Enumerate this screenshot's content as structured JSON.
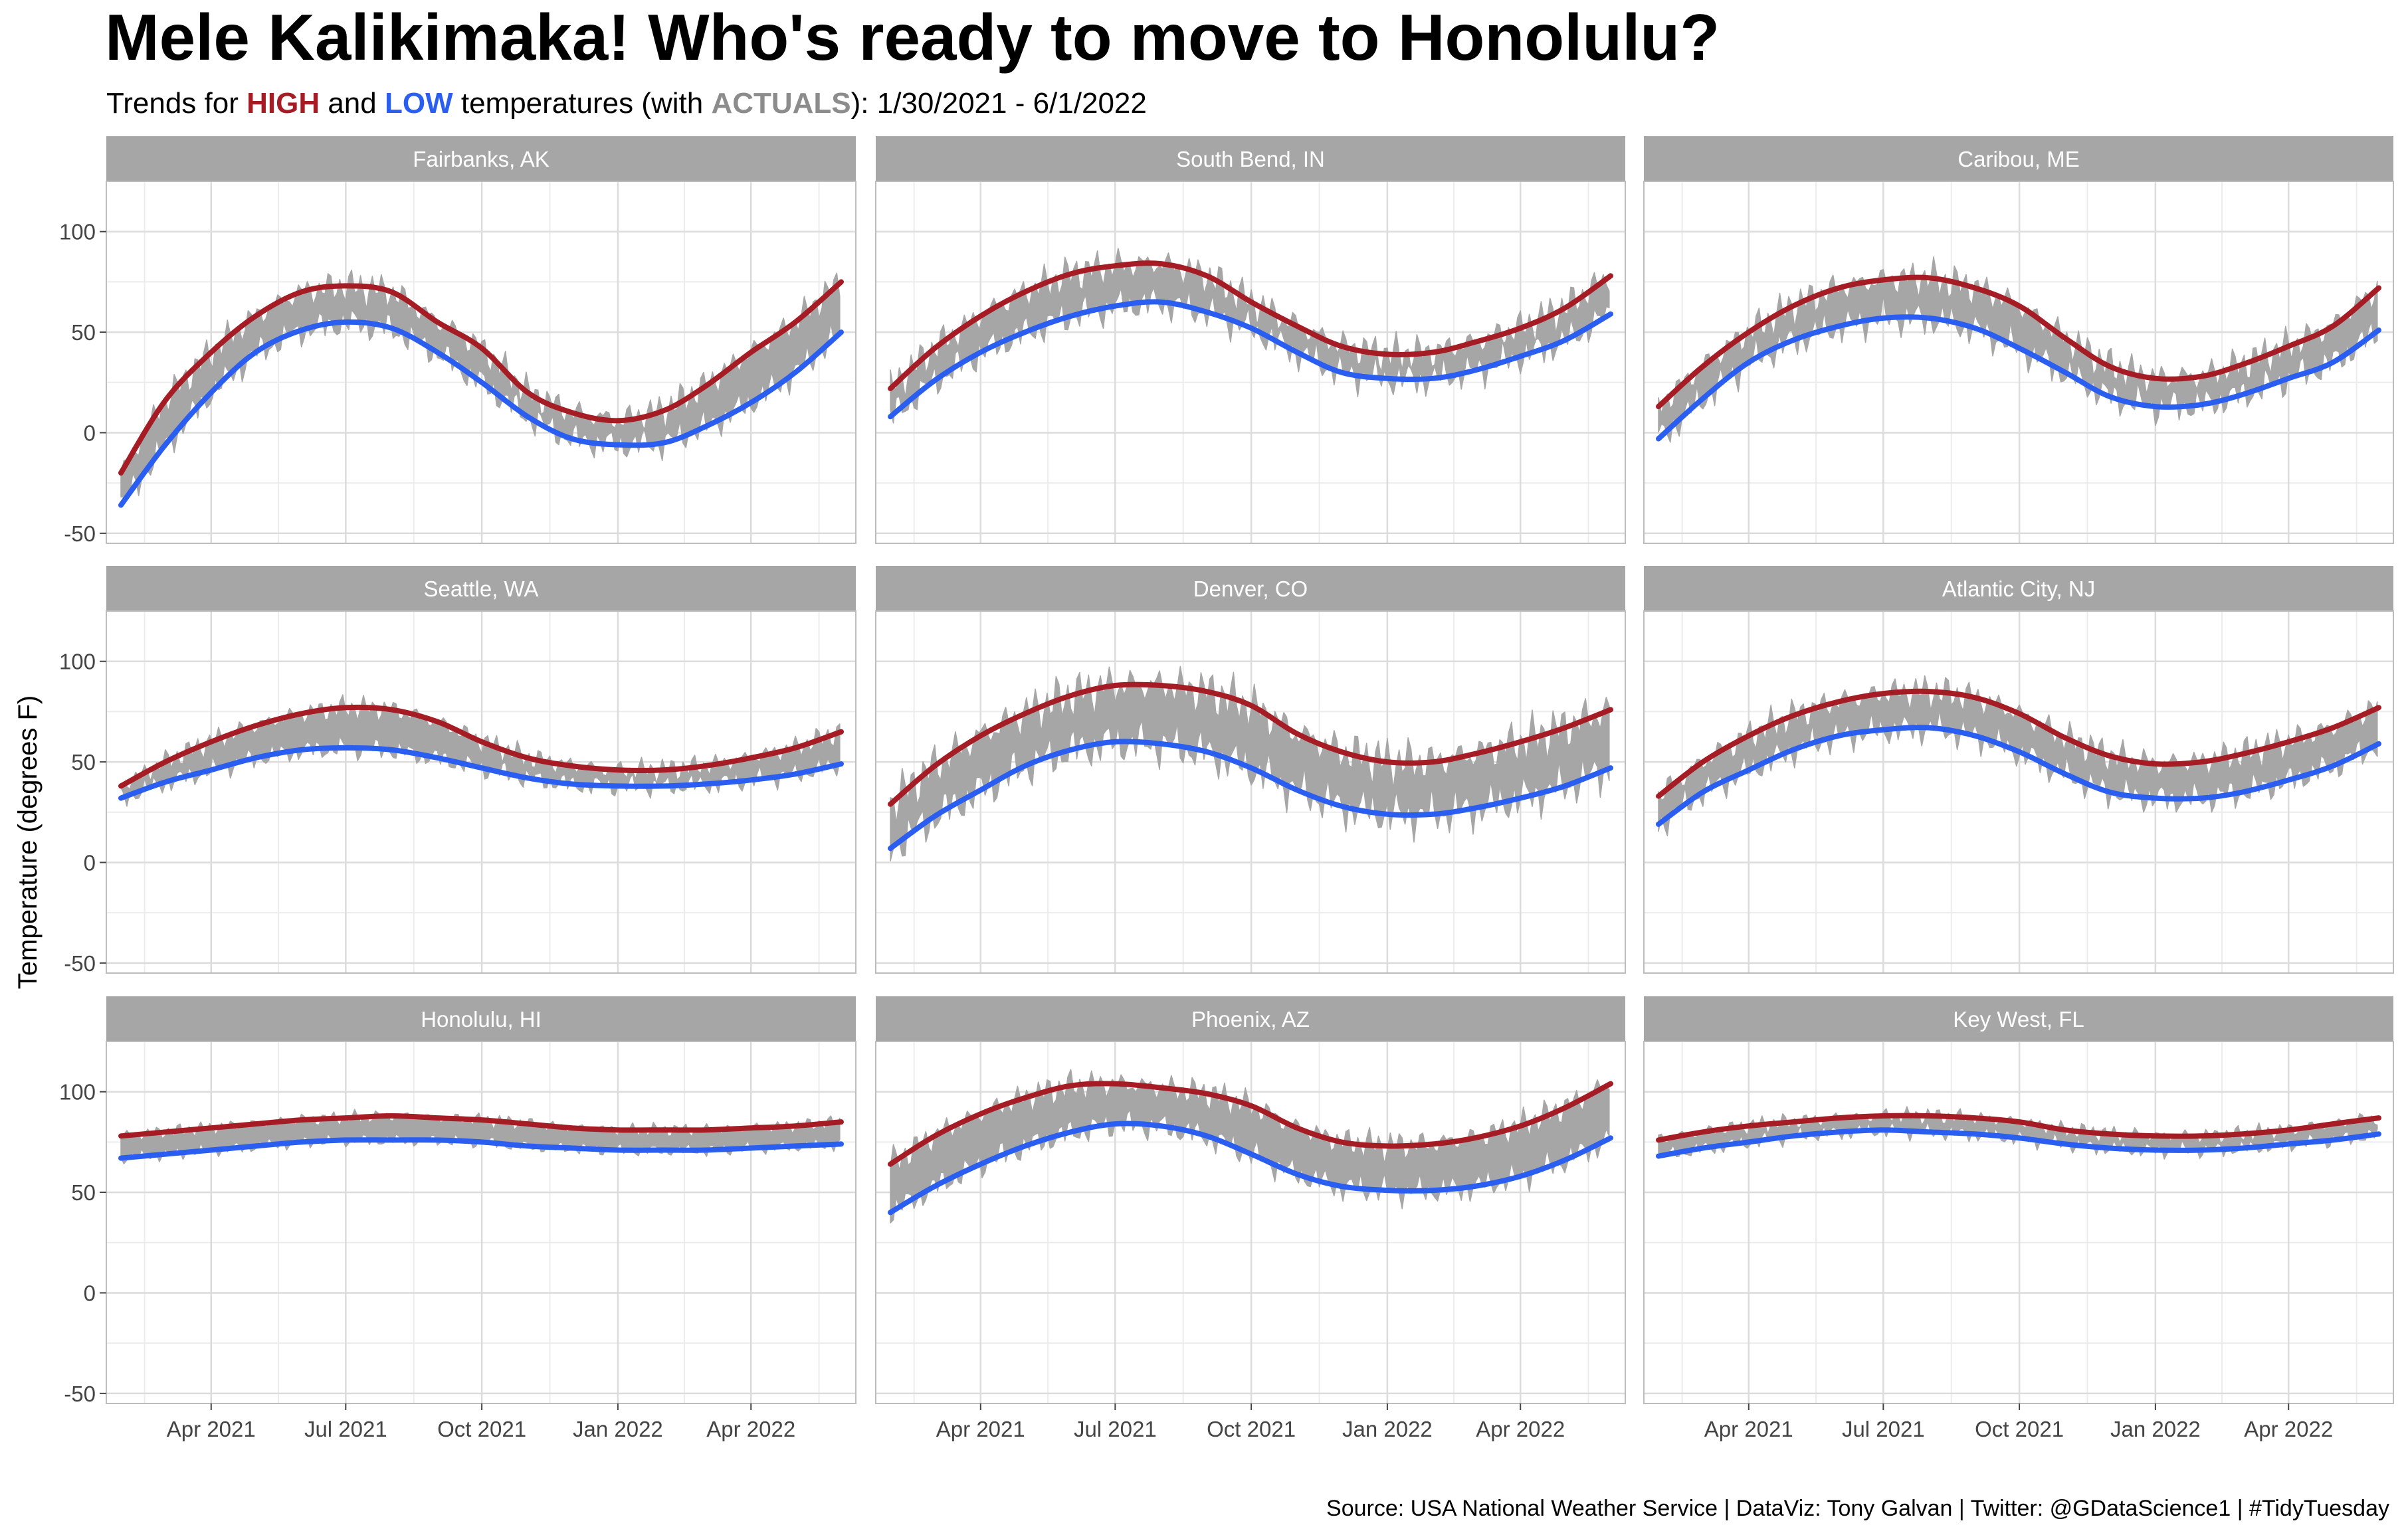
{
  "title": "Mele Kalikimaka! Who's ready to move to Honolulu?",
  "subtitle": {
    "prefix": "Trends for ",
    "high_word": "HIGH",
    "and_word": " and ",
    "low_word": "LOW",
    "mid": " temperatures (with ",
    "actuals_word": "ACTUALS",
    "suffix": "): 1/30/2021 - 6/1/2022"
  },
  "caption": "Source: USA National Weather Service  |  DataViz: Tony Galvan  |  Twitter: @GDataScience1  |  #TidyTuesday",
  "colors": {
    "high": "#a51c24",
    "low": "#2a5ef0",
    "actuals": "#a6a6a6",
    "strip": "#a6a6a6",
    "grid_major": "#dcdcdc",
    "grid_minor": "#ececec",
    "panel_border": "#bdbdbd"
  },
  "chart_data": {
    "type": "line",
    "facet_layout": "3x3",
    "ylabel": "Temperature (degrees F)",
    "xlabel": "",
    "xlim": [
      "2021-01-30",
      "2022-06-01"
    ],
    "ylim": [
      -55,
      125
    ],
    "y_ticks": [
      -50,
      0,
      50,
      100
    ],
    "x_ticks": [
      {
        "date": "2021-04-01",
        "label": "Apr 2021"
      },
      {
        "date": "2021-07-01",
        "label": "Jul 2021"
      },
      {
        "date": "2021-10-01",
        "label": "Oct 2021"
      },
      {
        "date": "2022-01-01",
        "label": "Jan 2022"
      },
      {
        "date": "2022-04-01",
        "label": "Apr 2022"
      }
    ],
    "grid": true,
    "legend": "none",
    "trend_dates": [
      "2021-01-30",
      "2021-03-01",
      "2021-04-01",
      "2021-05-01",
      "2021-06-01",
      "2021-07-01",
      "2021-08-01",
      "2021-09-01",
      "2021-10-01",
      "2021-11-01",
      "2021-12-01",
      "2022-01-01",
      "2022-02-01",
      "2022-03-01",
      "2022-04-01",
      "2022-05-01",
      "2022-06-01"
    ],
    "panels": [
      {
        "city": "Fairbanks, AK",
        "high": [
          -20,
          16,
          40,
          58,
          70,
          73,
          70,
          55,
          42,
          20,
          10,
          6,
          11,
          23,
          40,
          55,
          75
        ],
        "low": [
          -36,
          -6,
          20,
          40,
          51,
          55,
          52,
          40,
          25,
          8,
          -3,
          -6,
          -5,
          3,
          15,
          30,
          50
        ],
        "actual_amplitude": 10
      },
      {
        "city": "South Bend, IN",
        "high": [
          22,
          42,
          58,
          70,
          79,
          83,
          84,
          78,
          65,
          53,
          43,
          39,
          40,
          45,
          52,
          62,
          78
        ],
        "low": [
          8,
          26,
          40,
          50,
          58,
          63,
          65,
          60,
          52,
          40,
          30,
          27,
          27,
          31,
          38,
          46,
          59
        ],
        "actual_amplitude": 11
      },
      {
        "city": "Caribou, ME",
        "high": [
          13,
          33,
          50,
          63,
          72,
          76,
          77,
          72,
          63,
          47,
          33,
          27,
          28,
          34,
          43,
          53,
          72
        ],
        "low": [
          -3,
          17,
          35,
          46,
          53,
          57,
          57,
          52,
          42,
          30,
          18,
          13,
          14,
          19,
          27,
          35,
          51
        ],
        "actual_amplitude": 11
      },
      {
        "city": "Seattle, WA",
        "high": [
          38,
          50,
          60,
          68,
          74,
          77,
          76,
          70,
          60,
          52,
          48,
          46,
          46,
          48,
          52,
          57,
          65
        ],
        "low": [
          32,
          40,
          46,
          52,
          56,
          57,
          56,
          52,
          47,
          42,
          39,
          38,
          38,
          39,
          41,
          44,
          49
        ],
        "actual_amplitude": 7
      },
      {
        "city": "Denver, CO",
        "high": [
          29,
          48,
          63,
          74,
          83,
          88,
          88,
          85,
          78,
          64,
          55,
          50,
          50,
          54,
          60,
          67,
          76
        ],
        "low": [
          7,
          23,
          36,
          48,
          56,
          60,
          59,
          55,
          47,
          36,
          28,
          24,
          24,
          27,
          32,
          38,
          47
        ],
        "actual_amplitude": 14
      },
      {
        "city": "Atlantic City, NJ",
        "high": [
          33,
          50,
          63,
          73,
          80,
          84,
          85,
          82,
          74,
          62,
          53,
          49,
          50,
          54,
          60,
          67,
          77
        ],
        "low": [
          19,
          35,
          46,
          56,
          63,
          66,
          67,
          63,
          55,
          44,
          35,
          32,
          32,
          35,
          41,
          48,
          59
        ],
        "actual_amplitude": 10
      },
      {
        "city": "Honolulu, HI",
        "high": [
          78,
          80,
          82,
          84,
          86,
          87,
          88,
          87,
          86,
          84,
          82,
          81,
          81,
          81,
          82,
          83,
          85
        ],
        "low": [
          67,
          69,
          71,
          73,
          75,
          76,
          76,
          76,
          75,
          73,
          72,
          71,
          71,
          71,
          72,
          73,
          74
        ],
        "actual_amplitude": 4
      },
      {
        "city": "Phoenix, AZ",
        "high": [
          64,
          78,
          89,
          97,
          103,
          104,
          102,
          99,
          93,
          82,
          75,
          73,
          74,
          77,
          83,
          92,
          104
        ],
        "low": [
          40,
          53,
          64,
          73,
          80,
          84,
          83,
          78,
          69,
          59,
          53,
          51,
          51,
          53,
          58,
          66,
          77
        ],
        "actual_amplitude": 9
      },
      {
        "city": "Key West, FL",
        "high": [
          76,
          80,
          83,
          85,
          87,
          88,
          88,
          87,
          85,
          81,
          79,
          78,
          78,
          79,
          81,
          84,
          87
        ],
        "low": [
          68,
          72,
          75,
          78,
          80,
          81,
          80,
          79,
          77,
          74,
          72,
          71,
          71,
          72,
          74,
          76,
          79
        ],
        "actual_amplitude": 5
      }
    ]
  }
}
